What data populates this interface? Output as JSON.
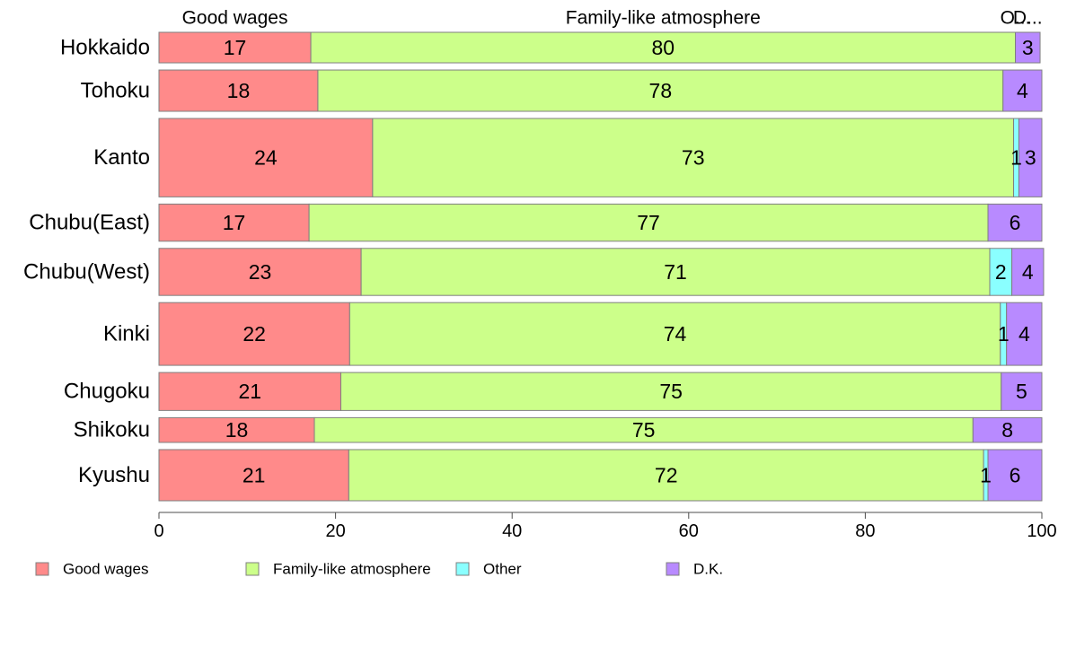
{
  "chart_data": {
    "type": "bar",
    "orientation": "horizontal",
    "stacked": true,
    "variable_width": true,
    "categories": [
      "Hokkaido",
      "Tohoku",
      "Kanto",
      "Chubu(East)",
      "Chubu(West)",
      "Kinki",
      "Chugoku",
      "Shikoku",
      "Kyushu"
    ],
    "group_sizes": [
      37,
      50,
      95,
      45,
      57,
      76,
      46,
      30,
      62
    ],
    "series": [
      {
        "name": "Good wages",
        "color": "#FF8A8A",
        "values": [
          17.2,
          18.0,
          24.2,
          17.0,
          22.9,
          21.6,
          20.6,
          17.6,
          21.5
        ],
        "labels": [
          "17",
          "18",
          "24",
          "17",
          "23",
          "22",
          "21",
          "18",
          "21"
        ]
      },
      {
        "name": "Family-like atmosphere",
        "color": "#CCFF8A",
        "values": [
          79.8,
          77.6,
          72.6,
          76.9,
          71.2,
          73.7,
          74.8,
          74.6,
          71.9
        ],
        "labels": [
          "80",
          "78",
          "73",
          "77",
          "71",
          "74",
          "75",
          "75",
          "72"
        ]
      },
      {
        "name": "Other",
        "color": "#8AFFFF",
        "values": [
          0.0,
          0.0,
          0.6,
          0.0,
          2.5,
          0.7,
          0.0,
          0.0,
          0.5
        ],
        "labels": [
          "",
          "",
          "1",
          "",
          "2",
          "1",
          "",
          "",
          "1"
        ]
      },
      {
        "name": "D.K.",
        "color": "#B88AFF",
        "values": [
          2.8,
          4.4,
          2.6,
          6.1,
          3.6,
          4.0,
          4.6,
          7.8,
          6.1
        ],
        "labels": [
          "3",
          "4",
          "3",
          "6",
          "4",
          "4",
          "5",
          "8",
          "6"
        ]
      }
    ],
    "top_labels": [
      "Good wages",
      "Family-like atmosphere",
      "Other",
      "D.K."
    ],
    "top_labels_truncated": [
      "Good wages",
      "Family-like atmosphere",
      "O...",
      "D..."
    ],
    "xlim": [
      0,
      100
    ],
    "xticks": [
      0,
      20,
      40,
      60,
      80,
      100
    ],
    "grid": false,
    "legend": {
      "position": "bottom-left",
      "entries": [
        "Good wages",
        "Family-like atmosphere",
        "Other",
        "D.K."
      ]
    }
  }
}
